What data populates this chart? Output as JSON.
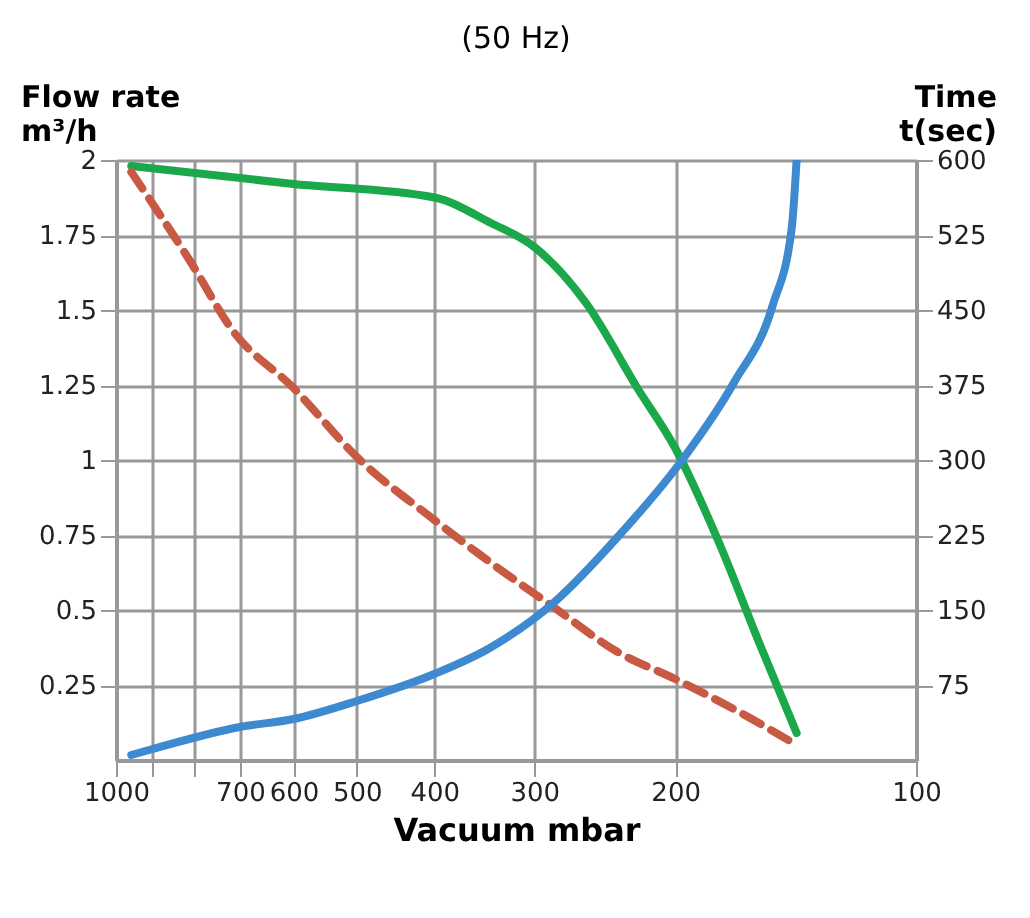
{
  "chart_data": {
    "type": "line",
    "title": "(50 Hz)",
    "xlabel": "Vacuum mbar",
    "ylabel": "Flow rate\nm³/h",
    "y2label": "Time\nt(sec)",
    "log": "x",
    "grid": true,
    "marker": "none",
    "xlim": [
      1000,
      100
    ],
    "xticks": [
      1000,
      {
        "value": 900,
        "label": null
      },
      {
        "value": 800,
        "label": null
      },
      700,
      600,
      500,
      400,
      300,
      200,
      100
    ],
    "ylim": [
      0,
      2
    ],
    "yticks": [
      0.25,
      0.5,
      0.75,
      1,
      1.25,
      1.5,
      1.75,
      2
    ],
    "y2lim": [
      0,
      600
    ],
    "y2ticks": [
      75,
      150,
      225,
      300,
      375,
      450,
      525,
      600
    ],
    "series": [
      {
        "color": "#1aa84a",
        "line_style": "solid",
        "x": [
          957,
          600,
          400,
          340,
          300,
          258,
          223,
          200,
          176,
          157,
          141
        ],
        "values": [
          1.98,
          1.92,
          1.875,
          1.79,
          1.71,
          1.52,
          1.24,
          1.04,
          0.72,
          0.39,
          0.09
        ]
      },
      {
        "color": "#c85a44",
        "line_style": "dashed",
        "x": [
          957,
          811,
          714,
          600,
          500,
          400,
          341,
          284,
          236,
          200,
          169,
          141
        ],
        "values": [
          1.96,
          1.67,
          1.43,
          1.24,
          1.01,
          0.8,
          0.66,
          0.51,
          0.36,
          0.27,
          0.17,
          0.05
        ]
      },
      {
        "color": "#3e8ad0",
        "line_style": "solid",
        "axis": "y2",
        "x": [
          957,
          900,
          700,
          600,
          500,
          400,
          341,
          284,
          236,
          196,
          169,
          151,
          143,
          141
        ],
        "values": [
          5,
          11,
          33,
          41,
          59,
          86,
          112,
          157,
          223,
          300,
          377,
          455,
          532,
          600
        ]
      }
    ]
  }
}
